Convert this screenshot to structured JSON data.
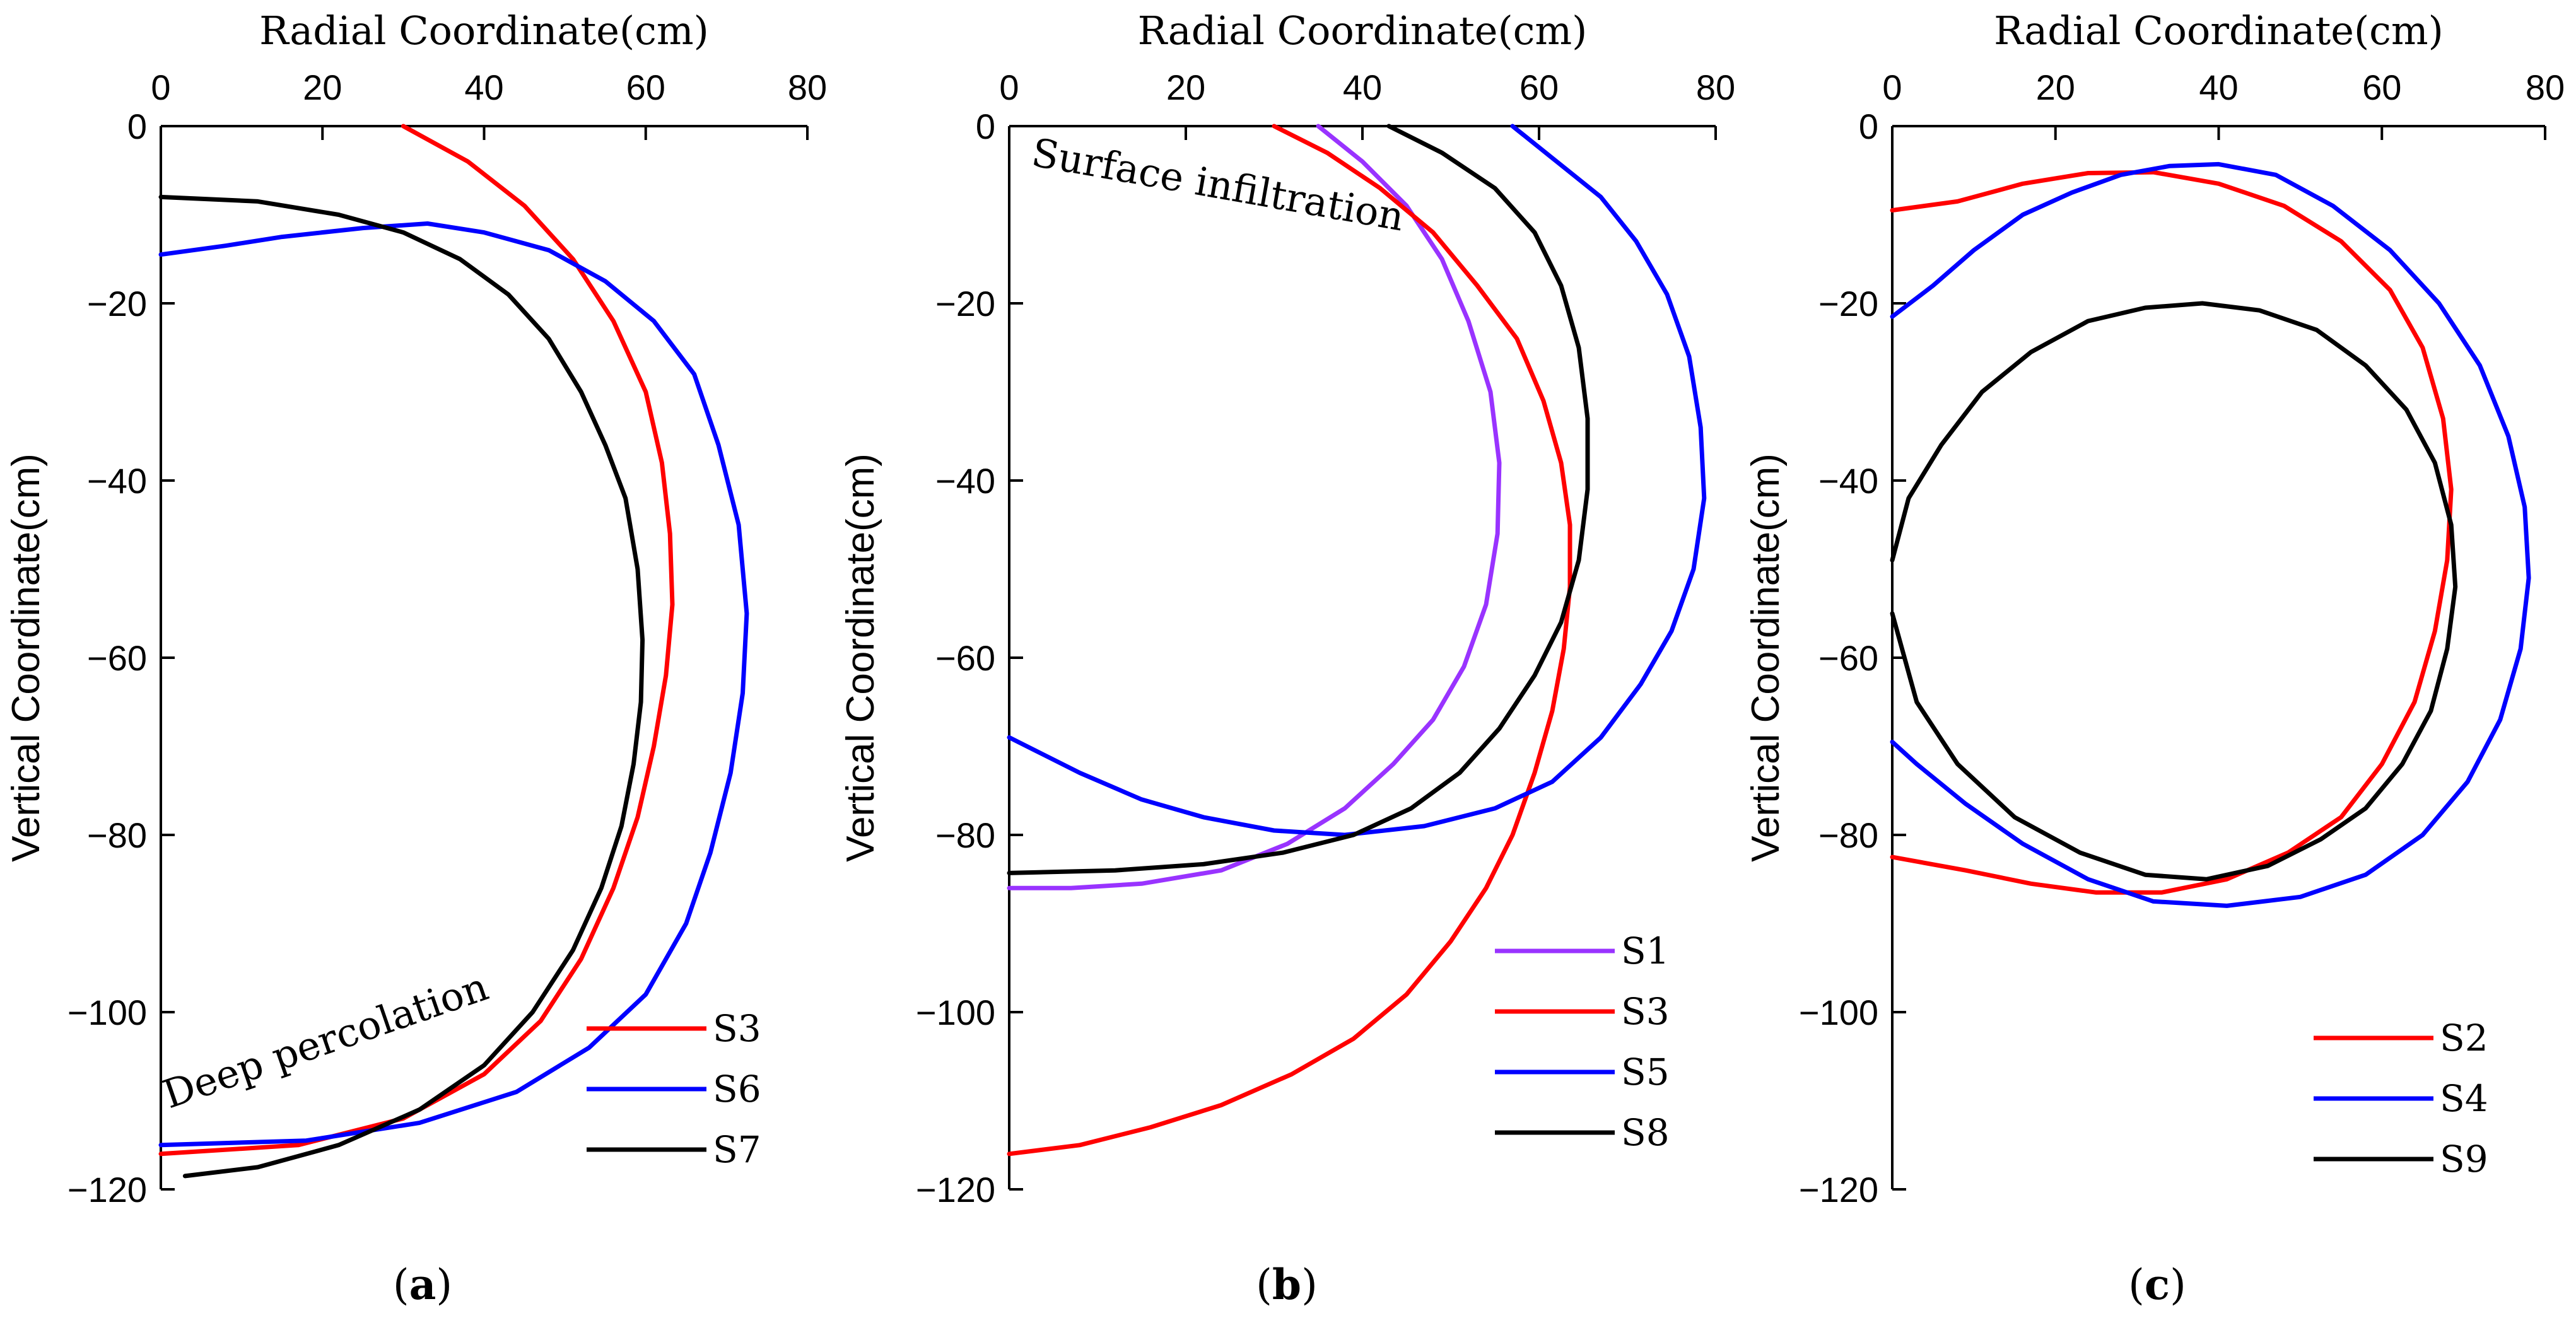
{
  "figure": {
    "panel_labels": [
      {
        "prefix": "(",
        "letter": "a",
        "suffix": ")"
      },
      {
        "prefix": "(",
        "letter": "b",
        "suffix": ")"
      },
      {
        "prefix": "(",
        "letter": "c",
        "suffix": ")"
      }
    ]
  },
  "colors": {
    "S1": "#9933ff",
    "S2": "#ff0000",
    "S3": "#ff0000",
    "S4": "#0000ff",
    "S5": "#0000ff",
    "S6": "#0000ff",
    "S7": "#000000",
    "S8": "#000000",
    "S9": "#000000",
    "axis": "#000000"
  },
  "chart_data": [
    {
      "type": "line",
      "panel": "a",
      "xlabel": "Radial Coordinate(cm)",
      "ylabel": "Vertical Coordinate(cm)",
      "xlim": [
        0,
        80
      ],
      "ylim": [
        -120,
        0
      ],
      "xticks": [
        0,
        20,
        40,
        60,
        80
      ],
      "yticks": [
        0,
        -20,
        -40,
        -60,
        -80,
        -100,
        -120
      ],
      "legend_position": "bottom-right",
      "annotations": [
        {
          "text": "Deep percolation"
        }
      ],
      "series": [
        {
          "name": "S3",
          "points": [
            [
              30,
              0
            ],
            [
              38,
              -4
            ],
            [
              45,
              -9
            ],
            [
              51,
              -15
            ],
            [
              56,
              -22
            ],
            [
              60,
              -30
            ],
            [
              62,
              -38
            ],
            [
              63,
              -46
            ],
            [
              63.3,
              -54
            ],
            [
              62.5,
              -62
            ],
            [
              61,
              -70
            ],
            [
              59,
              -78
            ],
            [
              56,
              -86
            ],
            [
              52,
              -94
            ],
            [
              47,
              -101
            ],
            [
              40,
              -107
            ],
            [
              30,
              -112
            ],
            [
              17,
              -115
            ],
            [
              0,
              -116
            ]
          ]
        },
        {
          "name": "S6",
          "points": [
            [
              0,
              -14.5
            ],
            [
              8,
              -13.5
            ],
            [
              15,
              -12.5
            ],
            [
              25,
              -11.5
            ],
            [
              33,
              -11
            ],
            [
              40,
              -12
            ],
            [
              48,
              -14
            ],
            [
              55,
              -17.5
            ],
            [
              61,
              -22
            ],
            [
              66,
              -28
            ],
            [
              69,
              -36
            ],
            [
              71.5,
              -45
            ],
            [
              72.5,
              -55
            ],
            [
              72,
              -64
            ],
            [
              70.5,
              -73
            ],
            [
              68,
              -82
            ],
            [
              65,
              -90
            ],
            [
              60,
              -98
            ],
            [
              53,
              -104
            ],
            [
              44,
              -109
            ],
            [
              32,
              -112.5
            ],
            [
              18,
              -114.5
            ],
            [
              0,
              -115
            ]
          ]
        },
        {
          "name": "S7",
          "points": [
            [
              0,
              -8
            ],
            [
              12,
              -8.5
            ],
            [
              22,
              -10
            ],
            [
              30,
              -12
            ],
            [
              37,
              -15
            ],
            [
              43,
              -19
            ],
            [
              48,
              -24
            ],
            [
              52,
              -30
            ],
            [
              55,
              -36
            ],
            [
              57.5,
              -42
            ],
            [
              59,
              -50
            ],
            [
              59.6,
              -58
            ],
            [
              59.4,
              -65
            ],
            [
              58.5,
              -72
            ],
            [
              57,
              -79
            ],
            [
              54.5,
              -86
            ],
            [
              51,
              -93
            ],
            [
              46,
              -100
            ],
            [
              40,
              -106
            ],
            [
              32,
              -111
            ],
            [
              22,
              -115
            ],
            [
              12,
              -117.5
            ],
            [
              3,
              -118.5
            ]
          ]
        }
      ]
    },
    {
      "type": "line",
      "panel": "b",
      "xlabel": "Radial Coordinate(cm)",
      "ylabel": "Vertical Coordinate(cm)",
      "xlim": [
        0,
        80
      ],
      "ylim": [
        -120,
        0
      ],
      "xticks": [
        0,
        20,
        40,
        60,
        80
      ],
      "yticks": [
        0,
        -20,
        -40,
        -60,
        -80,
        -100,
        -120
      ],
      "legend_position": "bottom-right",
      "annotations": [
        {
          "text": "Surface infiltration"
        }
      ],
      "series": [
        {
          "name": "S1",
          "points": [
            [
              35,
              0
            ],
            [
              40,
              -4
            ],
            [
              45,
              -9
            ],
            [
              49,
              -15
            ],
            [
              52,
              -22
            ],
            [
              54.5,
              -30
            ],
            [
              55.5,
              -38
            ],
            [
              55.3,
              -46
            ],
            [
              54,
              -54
            ],
            [
              51.5,
              -61
            ],
            [
              48,
              -67
            ],
            [
              43.5,
              -72
            ],
            [
              38,
              -77
            ],
            [
              31.5,
              -81
            ],
            [
              24,
              -84
            ],
            [
              15,
              -85.5
            ],
            [
              7,
              -86
            ],
            [
              0,
              -86
            ]
          ]
        },
        {
          "name": "S3",
          "points": [
            [
              30,
              0
            ],
            [
              36,
              -3
            ],
            [
              42,
              -7
            ],
            [
              48,
              -12
            ],
            [
              53,
              -18
            ],
            [
              57.5,
              -24
            ],
            [
              60.5,
              -31
            ],
            [
              62.5,
              -38
            ],
            [
              63.5,
              -45
            ],
            [
              63.5,
              -52
            ],
            [
              62.8,
              -59
            ],
            [
              61.5,
              -66
            ],
            [
              59.5,
              -73
            ],
            [
              57,
              -80
            ],
            [
              54,
              -86
            ],
            [
              50,
              -92
            ],
            [
              45,
              -98
            ],
            [
              39,
              -103
            ],
            [
              32,
              -107
            ],
            [
              24,
              -110.5
            ],
            [
              16,
              -113
            ],
            [
              8,
              -115
            ],
            [
              0,
              -116
            ]
          ]
        },
        {
          "name": "S5",
          "points": [
            [
              57,
              0
            ],
            [
              62,
              -4
            ],
            [
              67,
              -8
            ],
            [
              71,
              -13
            ],
            [
              74.5,
              -19
            ],
            [
              77,
              -26
            ],
            [
              78.3,
              -34
            ],
            [
              78.7,
              -42
            ],
            [
              77.5,
              -50
            ],
            [
              75,
              -57
            ],
            [
              71.5,
              -63
            ],
            [
              67,
              -69
            ],
            [
              61.5,
              -74
            ],
            [
              55,
              -77
            ],
            [
              47,
              -79
            ],
            [
              38,
              -80
            ],
            [
              30,
              -79.5
            ],
            [
              22,
              -78
            ],
            [
              15,
              -76
            ],
            [
              8,
              -73
            ],
            [
              3,
              -70.5
            ],
            [
              0,
              -69
            ]
          ]
        },
        {
          "name": "S8",
          "points": [
            [
              43,
              0
            ],
            [
              49,
              -3
            ],
            [
              55,
              -7
            ],
            [
              59.5,
              -12
            ],
            [
              62.5,
              -18
            ],
            [
              64.5,
              -25
            ],
            [
              65.5,
              -33
            ],
            [
              65.5,
              -41
            ],
            [
              64.5,
              -49
            ],
            [
              62.5,
              -56
            ],
            [
              59.5,
              -62
            ],
            [
              55.5,
              -68
            ],
            [
              51,
              -73
            ],
            [
              45.5,
              -77
            ],
            [
              39,
              -80
            ],
            [
              31,
              -82
            ],
            [
              22,
              -83.3
            ],
            [
              12,
              -84
            ],
            [
              0,
              -84.3
            ]
          ]
        }
      ]
    },
    {
      "type": "line",
      "panel": "c",
      "xlabel": "Radial Coordinate(cm)",
      "ylabel": "Vertical Coordinate(cm)",
      "xlim": [
        0,
        80
      ],
      "ylim": [
        -120,
        0
      ],
      "xticks": [
        0,
        20,
        40,
        60,
        80
      ],
      "yticks": [
        0,
        -20,
        -40,
        -60,
        -80,
        -100,
        -120
      ],
      "legend_position": "bottom-right",
      "annotations": [],
      "series": [
        {
          "name": "S2",
          "points": [
            [
              0,
              -9.5
            ],
            [
              8,
              -8.5
            ],
            [
              16,
              -6.5
            ],
            [
              24,
              -5.3
            ],
            [
              32,
              -5.2
            ],
            [
              40,
              -6.5
            ],
            [
              48,
              -9
            ],
            [
              55,
              -13
            ],
            [
              61,
              -18.5
            ],
            [
              65,
              -25
            ],
            [
              67.5,
              -33
            ],
            [
              68.5,
              -41
            ],
            [
              68,
              -49
            ],
            [
              66.5,
              -57
            ],
            [
              64,
              -65
            ],
            [
              60,
              -72
            ],
            [
              55,
              -78
            ],
            [
              48.5,
              -82
            ],
            [
              41,
              -85
            ],
            [
              33,
              -86.5
            ],
            [
              25,
              -86.5
            ],
            [
              17,
              -85.5
            ],
            [
              9,
              -84
            ],
            [
              0,
              -82.5
            ]
          ]
        },
        {
          "name": "S4",
          "points": [
            [
              0,
              -21.5
            ],
            [
              5,
              -18
            ],
            [
              10,
              -14
            ],
            [
              16,
              -10
            ],
            [
              22,
              -7.5
            ],
            [
              28,
              -5.5
            ],
            [
              34,
              -4.5
            ],
            [
              40,
              -4.3
            ],
            [
              47,
              -5.5
            ],
            [
              54,
              -9
            ],
            [
              61,
              -14
            ],
            [
              67,
              -20
            ],
            [
              72,
              -27
            ],
            [
              75.5,
              -35
            ],
            [
              77.5,
              -43
            ],
            [
              78,
              -51
            ],
            [
              77,
              -59
            ],
            [
              74.5,
              -67
            ],
            [
              70.5,
              -74
            ],
            [
              65,
              -80
            ],
            [
              58,
              -84.5
            ],
            [
              50,
              -87
            ],
            [
              41,
              -88
            ],
            [
              32,
              -87.5
            ],
            [
              24,
              -85
            ],
            [
              16,
              -81
            ],
            [
              9,
              -76.5
            ],
            [
              3,
              -72
            ],
            [
              0,
              -69.5
            ]
          ]
        },
        {
          "name": "S9",
          "points": [
            [
              0,
              -49
            ],
            [
              2,
              -42
            ],
            [
              6,
              -36
            ],
            [
              11,
              -30
            ],
            [
              17,
              -25.5
            ],
            [
              24,
              -22
            ],
            [
              31,
              -20.5
            ],
            [
              38,
              -20
            ],
            [
              45,
              -20.8
            ],
            [
              52,
              -23
            ],
            [
              58,
              -27
            ],
            [
              63,
              -32
            ],
            [
              66.5,
              -38
            ],
            [
              68.5,
              -45
            ],
            [
              69,
              -52
            ],
            [
              68,
              -59
            ],
            [
              66,
              -66
            ],
            [
              62.5,
              -72
            ],
            [
              58,
              -77
            ],
            [
              52.5,
              -80.5
            ],
            [
              46,
              -83.5
            ],
            [
              38.5,
              -85
            ],
            [
              31,
              -84.5
            ],
            [
              23,
              -82
            ],
            [
              15,
              -78
            ],
            [
              8,
              -72
            ],
            [
              3,
              -65
            ],
            [
              0,
              -55
            ]
          ]
        }
      ]
    }
  ]
}
